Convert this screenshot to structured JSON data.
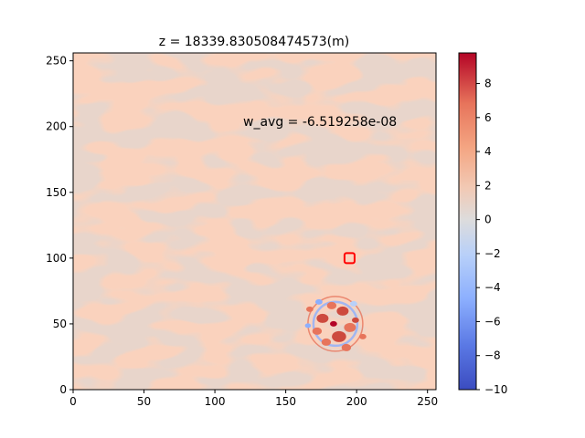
{
  "chart_data": {
    "type": "heatmap",
    "title": "z = 18339.830508474573(m)",
    "annotation": "w_avg = -6.519258e-08",
    "xlabel": "",
    "ylabel": "",
    "xlim": [
      0,
      256
    ],
    "ylim": [
      0,
      256
    ],
    "xticks": [
      0,
      50,
      100,
      150,
      200,
      250
    ],
    "yticks": [
      0,
      50,
      100,
      150,
      200,
      250
    ],
    "colorbar": {
      "colormap": "coolwarm",
      "min": -10,
      "max": 9.8,
      "ticks": [
        8,
        6,
        4,
        2,
        0,
        -2,
        -4,
        -6,
        -8,
        -10
      ]
    },
    "dominant_levels": [
      {
        "range": [
          2,
          4
        ],
        "color": "#f4a582"
      },
      {
        "range": [
          0,
          2
        ],
        "color": "#e8d5cb"
      }
    ],
    "marker": {
      "type": "square",
      "x": 195,
      "y": 100,
      "color": "#ff0000"
    },
    "hotspot_center": [
      185,
      50
    ]
  }
}
